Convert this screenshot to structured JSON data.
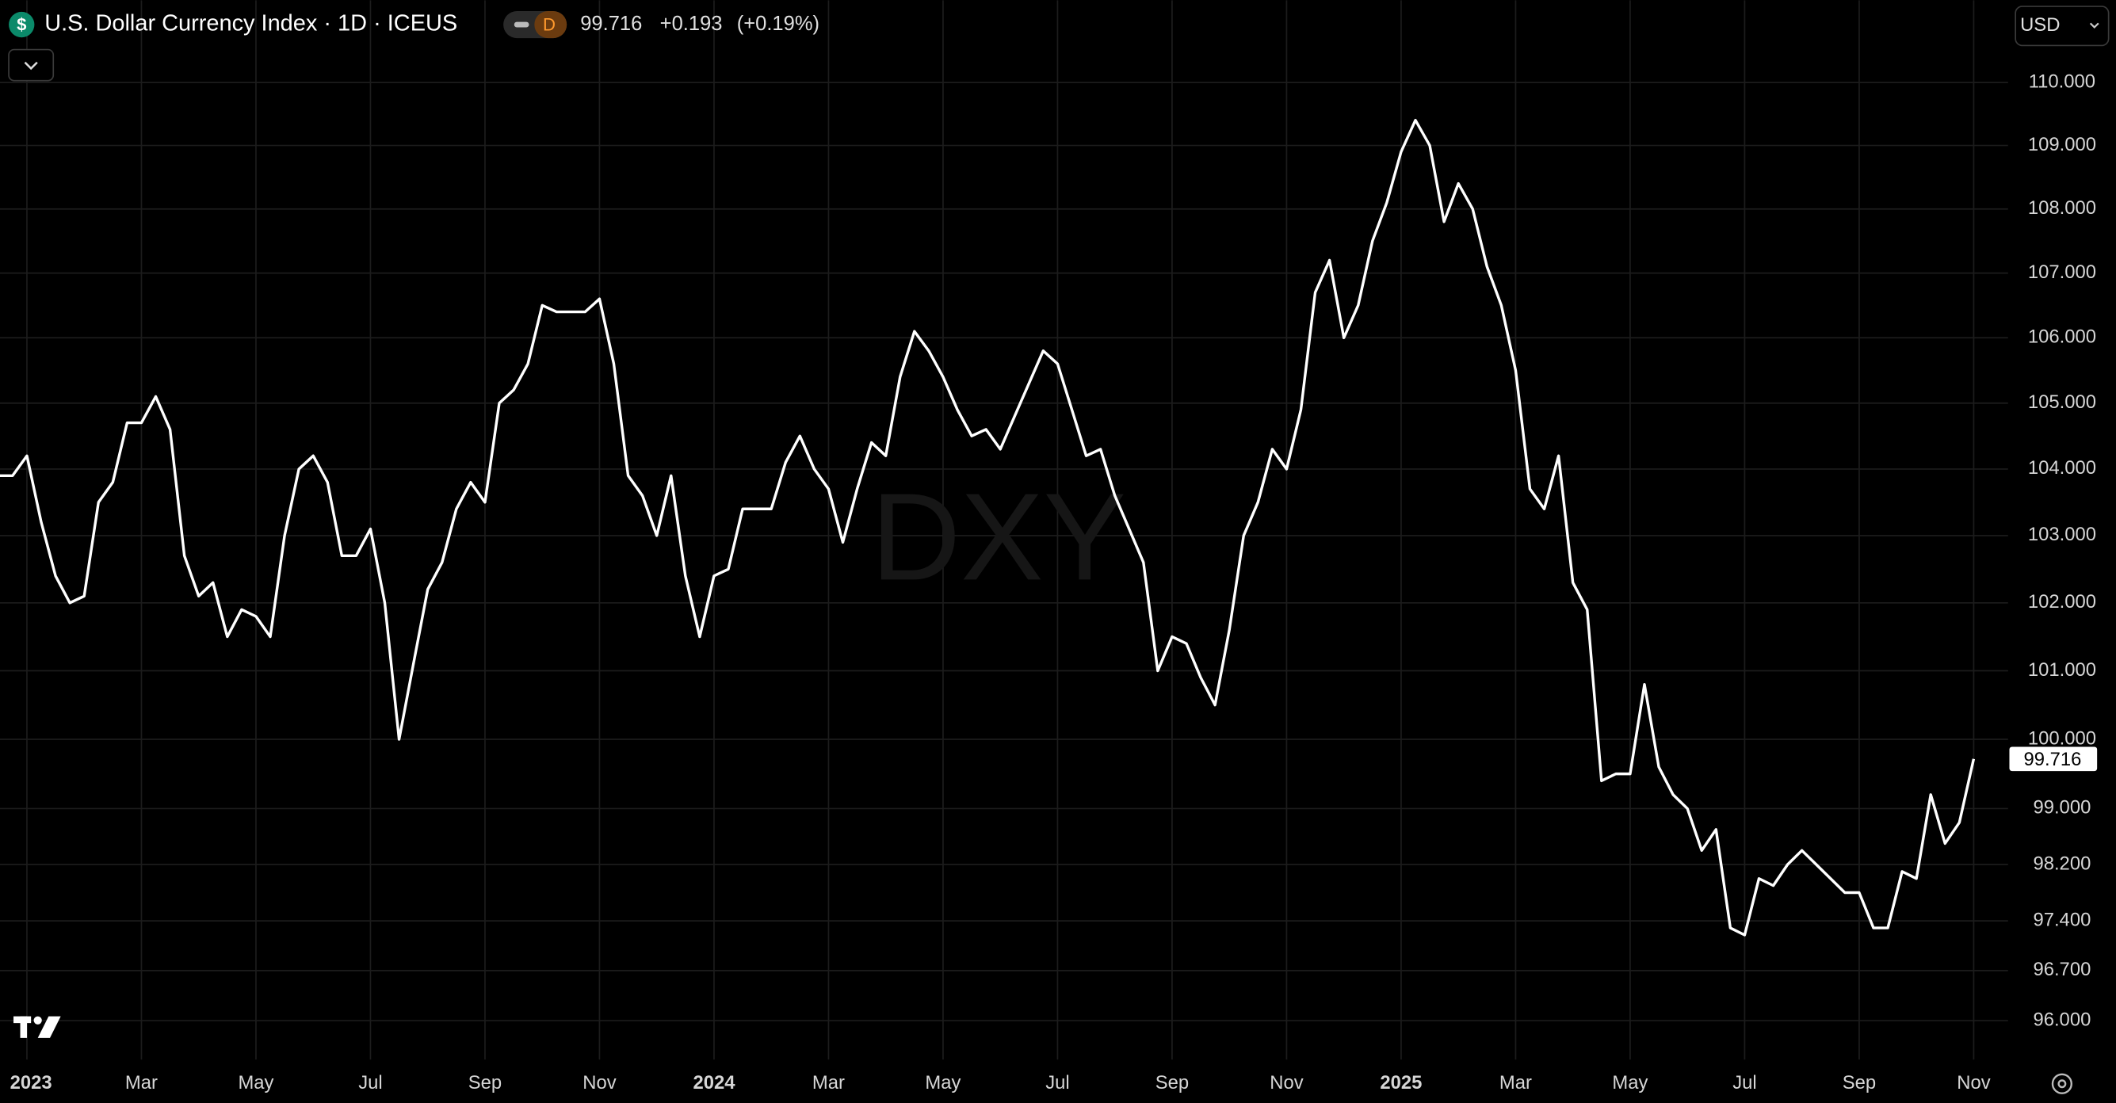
{
  "chart_data": {
    "type": "line",
    "title": "U.S. Dollar Currency Index · 1D · ICEUS",
    "icon": "$",
    "badge": "D",
    "change": "+0.193",
    "change_percent": "(+0.19%)",
    "currency": "USD",
    "watermark": "DXY",
    "color": "#ffffff",
    "log_scale": true,
    "grid": true,
    "xlim": [
      -0.47,
      34.6
    ],
    "ylim": [
      95.46,
      111.32
    ],
    "xticks": [
      {
        "value": 0,
        "label": "2023"
      },
      {
        "value": 2,
        "label": "Mar"
      },
      {
        "value": 4,
        "label": "May"
      },
      {
        "value": 6,
        "label": "Jul"
      },
      {
        "value": 8,
        "label": "Sep"
      },
      {
        "value": 10,
        "label": "Nov"
      },
      {
        "value": 12,
        "label": "2024"
      },
      {
        "value": 14,
        "label": "Mar"
      },
      {
        "value": 16,
        "label": "May"
      },
      {
        "value": 18,
        "label": "Jul"
      },
      {
        "value": 20,
        "label": "Sep"
      },
      {
        "value": 22,
        "label": "Nov"
      },
      {
        "value": 24,
        "label": "2025"
      },
      {
        "value": 26,
        "label": "Mar"
      },
      {
        "value": 28,
        "label": "May"
      },
      {
        "value": 30,
        "label": "Jul"
      },
      {
        "value": 32,
        "label": "Sep"
      },
      {
        "value": 34,
        "label": "Nov"
      }
    ],
    "yticks": [
      {
        "value": 110,
        "label": "110.000"
      },
      {
        "value": 109,
        "label": "109.000"
      },
      {
        "value": 108,
        "label": "108.000"
      },
      {
        "value": 107,
        "label": "107.000"
      },
      {
        "value": 106,
        "label": "106.000"
      },
      {
        "value": 105,
        "label": "105.000"
      },
      {
        "value": 104,
        "label": "104.000"
      },
      {
        "value": 103,
        "label": "103.000"
      },
      {
        "value": 102,
        "label": "102.000"
      },
      {
        "value": 101,
        "label": "101.000"
      },
      {
        "value": 100,
        "label": "100.000"
      },
      {
        "value": 99,
        "label": "99.000"
      },
      {
        "value": 98.2,
        "label": "98.200"
      },
      {
        "value": 97.4,
        "label": "97.400"
      },
      {
        "value": 96.7,
        "label": "96.700"
      },
      {
        "value": 96,
        "label": "96.000"
      }
    ],
    "x": [
      -0.5,
      -0.25,
      0,
      0.25,
      0.5,
      0.75,
      1,
      1.25,
      1.5,
      1.75,
      2,
      2.25,
      2.5,
      2.75,
      3,
      3.25,
      3.5,
      3.75,
      4,
      4.25,
      4.5,
      4.75,
      5,
      5.25,
      5.5,
      5.75,
      6,
      6.25,
      6.5,
      6.75,
      7,
      7.25,
      7.5,
      7.75,
      8,
      8.25,
      8.5,
      8.75,
      9,
      9.25,
      9.5,
      9.75,
      10,
      10.25,
      10.5,
      10.75,
      11,
      11.25,
      11.5,
      11.75,
      12,
      12.25,
      12.5,
      12.75,
      13,
      13.25,
      13.5,
      13.75,
      14,
      14.25,
      14.5,
      14.75,
      15,
      15.25,
      15.5,
      15.75,
      16,
      16.25,
      16.5,
      16.75,
      17,
      17.25,
      17.5,
      17.75,
      18,
      18.25,
      18.5,
      18.75,
      19,
      19.25,
      19.5,
      19.75,
      20,
      20.25,
      20.5,
      20.75,
      21,
      21.25,
      21.5,
      21.75,
      22,
      22.25,
      22.5,
      22.75,
      23,
      23.25,
      23.5,
      23.75,
      24,
      24.25,
      24.5,
      24.75,
      25,
      25.25,
      25.5,
      25.75,
      26,
      26.25,
      26.5,
      26.75,
      27,
      27.25,
      27.5,
      27.75,
      28,
      28.25,
      28.5,
      28.75,
      29,
      29.25,
      29.5,
      29.75,
      30,
      30.25,
      30.5,
      30.75,
      31,
      31.25,
      31.5,
      31.75,
      32,
      32.25,
      32.5,
      32.75,
      33,
      33.25,
      33.5,
      33.75,
      34
    ],
    "values": [
      103.9,
      103.9,
      104.2,
      103.2,
      102.4,
      102.0,
      102.1,
      103.5,
      103.8,
      104.7,
      104.7,
      105.1,
      104.6,
      102.7,
      102.1,
      102.3,
      101.5,
      101.9,
      101.8,
      101.5,
      103.0,
      104.0,
      104.2,
      103.8,
      102.7,
      102.7,
      103.1,
      102.0,
      100.0,
      101.1,
      102.2,
      102.6,
      103.4,
      103.8,
      103.5,
      105.0,
      105.2,
      105.6,
      106.5,
      106.4,
      106.4,
      106.4,
      106.6,
      105.6,
      103.9,
      103.6,
      103.0,
      103.9,
      102.4,
      101.5,
      102.4,
      102.5,
      103.4,
      103.4,
      103.4,
      104.1,
      104.5,
      104.0,
      103.7,
      102.9,
      103.7,
      104.4,
      104.2,
      105.4,
      106.1,
      105.8,
      105.4,
      104.9,
      104.5,
      104.6,
      104.3,
      104.8,
      105.3,
      105.8,
      105.6,
      104.9,
      104.2,
      104.3,
      103.6,
      103.1,
      102.6,
      101.0,
      101.5,
      101.4,
      100.9,
      100.5,
      101.6,
      103.0,
      103.5,
      104.3,
      104.0,
      104.9,
      106.7,
      107.2,
      106.0,
      106.5,
      107.5,
      108.1,
      108.9,
      109.4,
      109.0,
      107.8,
      108.4,
      108.0,
      107.1,
      106.5,
      105.5,
      103.7,
      103.4,
      104.2,
      102.3,
      101.9,
      99.4,
      99.5,
      99.5,
      100.8,
      99.6,
      99.2,
      99.0,
      98.4,
      98.7,
      97.3,
      97.2,
      98.0,
      97.9,
      98.2,
      98.4,
      98.2,
      98.0,
      97.8,
      97.8,
      97.3,
      97.3,
      98.1,
      98.0,
      99.2,
      98.5,
      98.8,
      99.716
    ]
  }
}
